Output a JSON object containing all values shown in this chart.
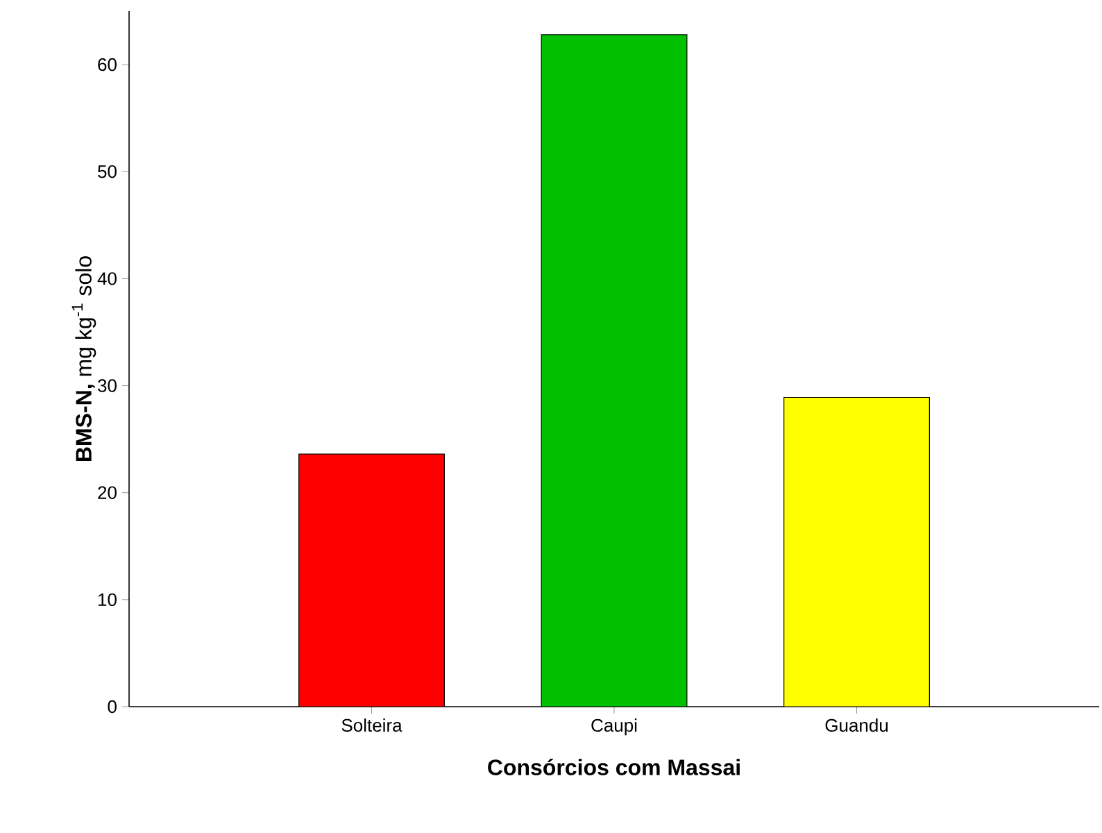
{
  "chart_data": {
    "type": "bar",
    "xlabel": "Consórcios com Massai",
    "ylabel": "**BMS-N,** mg kg$^{-1}$ solo",
    "categories": [
      "Solteira",
      "Caupi",
      "Guandu"
    ],
    "values": [
      23.6,
      62.8,
      28.9
    ],
    "colors": [
      "#ff0000",
      "#00c000",
      "#ffff00"
    ],
    "ylim": [
      0,
      65
    ],
    "yticks": [
      0,
      10,
      20,
      30,
      40,
      50,
      60
    ],
    "grid": false
  }
}
